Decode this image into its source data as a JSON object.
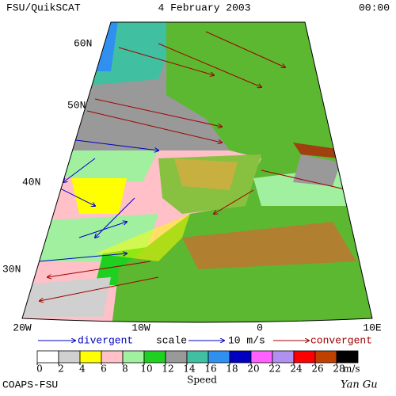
{
  "header": {
    "left": "FSU/QuikSCAT",
    "center": "4 February 2003",
    "right": "00:00"
  },
  "lat_labels": [
    "60N",
    "50N",
    "40N",
    "30N"
  ],
  "lon_labels": [
    "20W",
    "10W",
    "0",
    "10E"
  ],
  "legend": {
    "divergent": "divergent",
    "scale": "scale",
    "scale_value": "10 m/s",
    "convergent": "convergent"
  },
  "colorbar": {
    "ticks": [
      0,
      2,
      4,
      6,
      8,
      10,
      12,
      14,
      16,
      18,
      20,
      22,
      24,
      26,
      28
    ],
    "colors": [
      "#ffffff",
      "#d0d0d0",
      "#ffff00",
      "#ffc0c8",
      "#a0f0a0",
      "#20d020",
      "#999999",
      "#40c0a0",
      "#3090f0",
      "#0000c0",
      "#ff60ff",
      "#b090f0",
      "#ff0000",
      "#c04000",
      "#000000"
    ],
    "unit": "m/s",
    "label": "Speed"
  },
  "footer": {
    "left": "COAPS-FSU",
    "right": "Yan Gu"
  }
}
